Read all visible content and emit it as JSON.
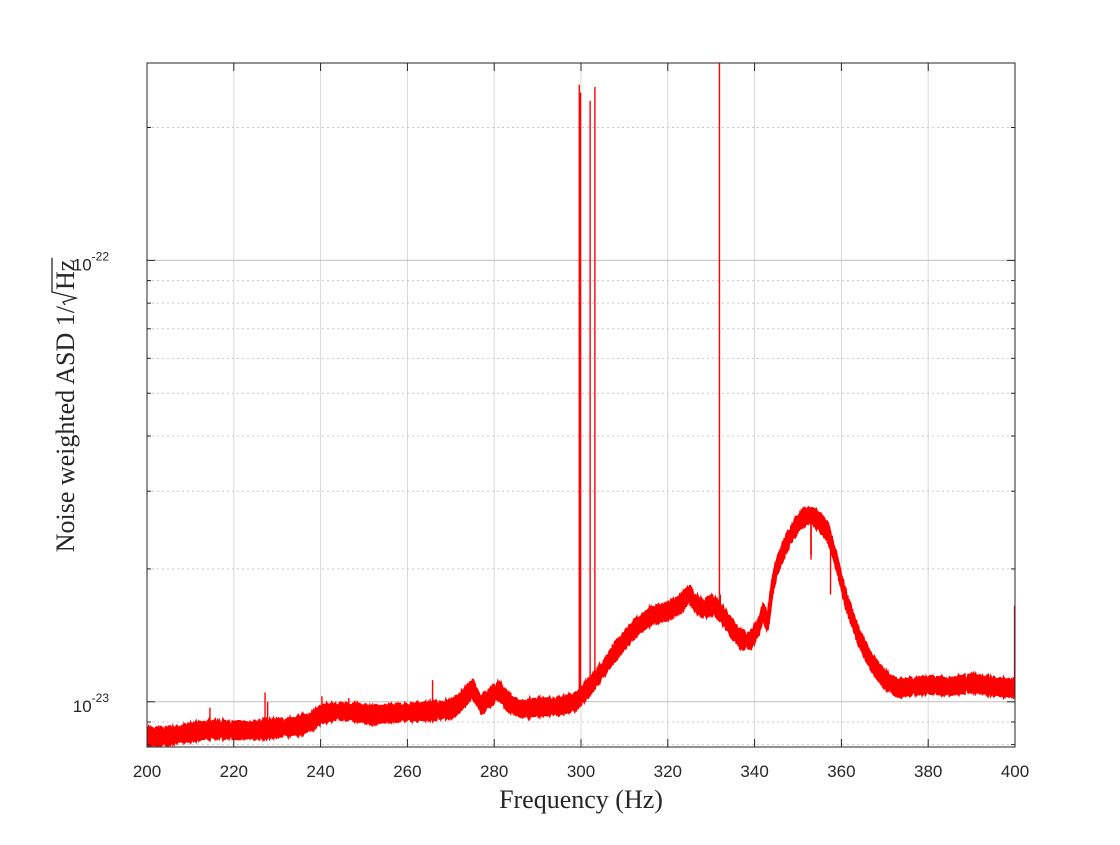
{
  "chart_data": {
    "type": "line",
    "title": "",
    "xlabel": "Frequency (Hz)",
    "ylabel_text": "Noise weighted ASD 1/",
    "ylabel_root": "Hz",
    "xlim": [
      200,
      400
    ],
    "ylim": [
      7.9e-24,
      2.8e-22
    ],
    "yscale": "log",
    "grid": true,
    "colors": {
      "series": "#ff0000",
      "grid": "#d9d9d9",
      "axis": "#262626"
    },
    "x_ticks": [
      "200",
      "220",
      "240",
      "260",
      "280",
      "300",
      "320",
      "340",
      "360",
      "380",
      "400"
    ],
    "y_ticks": [
      {
        "base": "10",
        "exp": "-23"
      },
      {
        "base": "10",
        "exp": "-22"
      }
    ],
    "series": [
      {
        "x": [
          200,
          205,
          210,
          215,
          220,
          225,
          230,
          235,
          238,
          240,
          244,
          248,
          252,
          256,
          260,
          265,
          270,
          272,
          275,
          277,
          279,
          281,
          283,
          286,
          290,
          295,
          299,
          300,
          302,
          305,
          308,
          312,
          316,
          320,
          323,
          325,
          326,
          328,
          330,
          331,
          333,
          335,
          337,
          339,
          341,
          342,
          343,
          344,
          345,
          347,
          349,
          351,
          353,
          355,
          357,
          359,
          361,
          364,
          367,
          370,
          373,
          376,
          380,
          385,
          390,
          395,
          400
        ],
        "y": [
          8.3e-24,
          8.35e-24,
          8.5e-24,
          8.65e-24,
          8.6e-24,
          8.6e-24,
          8.7e-24,
          8.8e-24,
          9e-24,
          9.35e-24,
          9.5e-24,
          9.45e-24,
          9.3e-24,
          9.4e-24,
          9.45e-24,
          9.5e-24,
          9.6e-24,
          9.9e-24,
          1.07e-23,
          9.8e-24,
          1.02e-23,
          1.06e-23,
          1e-23,
          9.6e-24,
          9.7e-24,
          9.75e-24,
          1e-23,
          1.03e-23,
          1.08e-23,
          1.18e-23,
          1.3e-23,
          1.45e-23,
          1.56e-23,
          1.6e-23,
          1.66e-23,
          1.76e-23,
          1.68e-23,
          1.62e-23,
          1.65e-23,
          1.64e-23,
          1.55e-23,
          1.45e-23,
          1.38e-23,
          1.37e-23,
          1.48e-23,
          1.6e-23,
          1.5e-23,
          1.8e-23,
          2e-23,
          2.25e-23,
          2.45e-23,
          2.6e-23,
          2.65e-23,
          2.55e-23,
          2.4e-23,
          2.05e-23,
          1.7e-23,
          1.4e-23,
          1.22e-23,
          1.12e-23,
          1.07e-23,
          1.08e-23,
          1.09e-23,
          1.08e-23,
          1.1e-23,
          1.08e-23,
          1.07e-23
        ],
        "spikes": [
          {
            "x": 214.5,
            "y": 9.7e-24
          },
          {
            "x": 227.2,
            "y": 1.05e-23
          },
          {
            "x": 227.8,
            "y": 1e-23
          },
          {
            "x": 240.3,
            "y": 1.03e-23
          },
          {
            "x": 246.5,
            "y": 1.02e-23
          },
          {
            "x": 265.8,
            "y": 1.12e-23
          },
          {
            "x": 299.6,
            "y": 2.5e-22
          },
          {
            "x": 299.9,
            "y": 2.4e-22
          },
          {
            "x": 302.1,
            "y": 2.3e-22
          },
          {
            "x": 303.2,
            "y": 2.47e-22
          },
          {
            "x": 331.9,
            "y": 2.8e-22
          },
          {
            "x": 332.1,
            "y": 1.75e-23
          },
          {
            "x": 353.0,
            "y": 2.1e-23
          },
          {
            "x": 357.5,
            "y": 1.75e-23
          },
          {
            "x": 399.9,
            "y": 1.65e-23
          }
        ],
        "dips": [
          {
            "x": 353.0,
            "y": 2.15e-23
          }
        ]
      }
    ]
  }
}
